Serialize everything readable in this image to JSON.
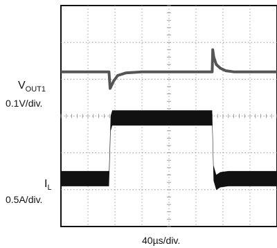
{
  "chart_data": {
    "type": "line",
    "time_scale": "40µs/div.",
    "grid": true,
    "divisions": {
      "x": 8,
      "y": 6
    },
    "series": [
      {
        "name": "VOUT1",
        "name_main": "V",
        "name_sub": "OUT1",
        "scale": "0.1V/div.",
        "x_div": [
          0,
          1.5,
          1.78,
          1.82,
          1.95,
          2.1,
          2.4,
          3.0,
          5.0,
          5.5,
          5.6,
          5.62,
          5.66,
          5.75,
          5.9,
          6.1,
          6.4,
          7.0,
          8.0
        ],
        "y_div": [
          4.2,
          4.2,
          4.2,
          3.75,
          3.95,
          4.1,
          4.17,
          4.2,
          4.2,
          4.2,
          4.2,
          4.8,
          4.6,
          4.4,
          4.3,
          4.23,
          4.2,
          4.2,
          4.2
        ],
        "color": "#555555"
      },
      {
        "name": "IL",
        "name_main": "I",
        "name_sub": "L",
        "scale": "0.5A/div.",
        "x_div": [
          0,
          1.78,
          1.84,
          1.9,
          5.6,
          5.65,
          5.75,
          5.9,
          6.2,
          8.0
        ],
        "y_div": [
          1.3,
          1.3,
          2.8,
          2.95,
          2.95,
          1.45,
          1.2,
          1.27,
          1.3,
          1.3
        ],
        "thickness": [
          22,
          22,
          22,
          22,
          22,
          22,
          22,
          22,
          22,
          22
        ],
        "color": "#111111"
      }
    ],
    "colors": {
      "grid": "#8a8a8a",
      "border": "#111111",
      "background": "#ffffff"
    }
  }
}
